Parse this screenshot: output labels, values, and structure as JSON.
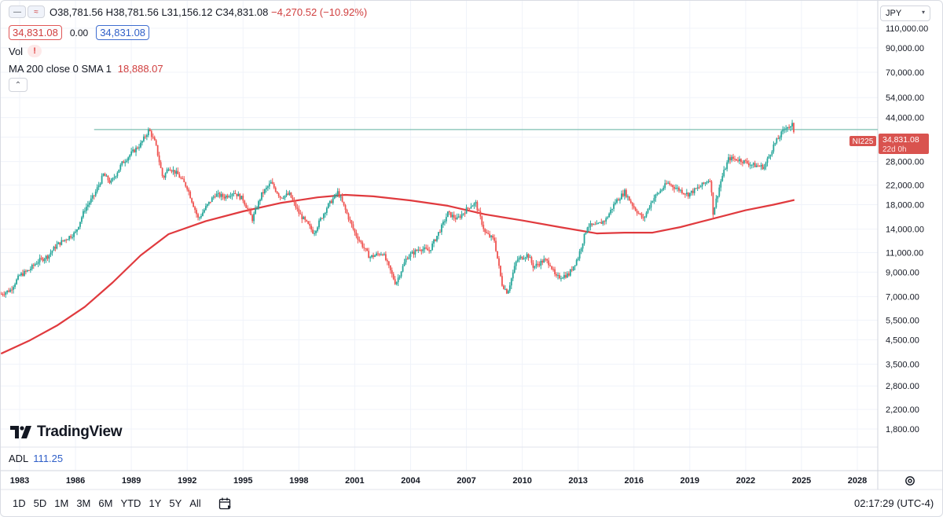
{
  "legend": {
    "ohlc_open": "O38,781.56",
    "ohlc_high": "H38,781.56",
    "ohlc_low": "L31,156.12",
    "ohlc_close": "C34,831.08",
    "ohlc_change": "−4,270.52 (−10.92%)",
    "bid": "34,831.08",
    "spread": "0.00",
    "ask": "34,831.08",
    "vol_label": "Vol",
    "vol_warning": "!",
    "ma_label": "MA 200 close 0 SMA 1",
    "ma_value": "18,888.07"
  },
  "currency": "JPY",
  "logo_text": "TradingView",
  "adl": {
    "label": "ADL",
    "value": "111.25"
  },
  "price_label": {
    "symbol": "NI225",
    "price": "34,831.08",
    "countdown": "22d 0h"
  },
  "ranges": [
    "1D",
    "5D",
    "1M",
    "3M",
    "6M",
    "YTD",
    "1Y",
    "5Y",
    "All"
  ],
  "clock": "02:17:29 (UTC-4)",
  "colors": {
    "up": "#26a69a",
    "down": "#ef5350",
    "ma": "#e03a3e",
    "hline": "#7fbfb2",
    "accent": "#2962ff"
  },
  "chart_data": {
    "type": "candlestick",
    "symbol": "NI225",
    "y_scale": "log",
    "ylim": [
      1500,
      125000
    ],
    "y_ticks": [
      1800,
      2200,
      2800,
      3500,
      4500,
      5500,
      7000,
      9000,
      11000,
      14000,
      18000,
      22000,
      28000,
      36000,
      44000,
      54000,
      70000,
      90000,
      110000
    ],
    "y_tick_labels": [
      "1,800.00",
      "2,200.00",
      "2,800.00",
      "3,500.00",
      "4,500.00",
      "5,500.00",
      "7,000.00",
      "9,000.00",
      "11,000.00",
      "14,000.00",
      "18,000.00",
      "22,000.00",
      "28,000.00",
      "36,000.00",
      "44,000.00",
      "54,000.00",
      "70,000.00",
      "90,000.00",
      "110,000.00"
    ],
    "x_tick_labels": [
      "1983",
      "1986",
      "1989",
      "1992",
      "1995",
      "1998",
      "2001",
      "2004",
      "2007",
      "2010",
      "2013",
      "2016",
      "2019",
      "2022",
      "2025",
      "2028"
    ],
    "x_range": [
      1982.0,
      2030.6
    ],
    "horizontal_line": 38900,
    "price_series": [
      [
        1982.0,
        7200
      ],
      [
        1982.5,
        7500
      ],
      [
        1983.0,
        8700
      ],
      [
        1983.5,
        9200
      ],
      [
        1984.0,
        10100
      ],
      [
        1984.5,
        10600
      ],
      [
        1985.0,
        11900
      ],
      [
        1985.5,
        12700
      ],
      [
        1986.0,
        13500
      ],
      [
        1986.5,
        17200
      ],
      [
        1987.0,
        19800
      ],
      [
        1987.5,
        24500
      ],
      [
        1987.9,
        22500
      ],
      [
        1988.5,
        27500
      ],
      [
        1989.0,
        30500
      ],
      [
        1989.5,
        33500
      ],
      [
        1989.95,
        38900
      ],
      [
        1990.3,
        33500
      ],
      [
        1990.7,
        23500
      ],
      [
        1991.0,
        26500
      ],
      [
        1991.5,
        24500
      ],
      [
        1992.0,
        21500
      ],
      [
        1992.6,
        15500
      ],
      [
        1993.0,
        17500
      ],
      [
        1993.5,
        20000
      ],
      [
        1994.0,
        19500
      ],
      [
        1994.5,
        20500
      ],
      [
        1995.0,
        19000
      ],
      [
        1995.5,
        15500
      ],
      [
        1996.0,
        20000
      ],
      [
        1996.5,
        22500
      ],
      [
        1997.0,
        19500
      ],
      [
        1997.5,
        20000
      ],
      [
        1998.0,
        16500
      ],
      [
        1998.8,
        13500
      ],
      [
        1999.5,
        17500
      ],
      [
        2000.1,
        20500
      ],
      [
        2000.5,
        17000
      ],
      [
        2001.0,
        13500
      ],
      [
        2001.8,
        10500
      ],
      [
        2002.5,
        11000
      ],
      [
        2003.2,
        8000
      ],
      [
        2003.8,
        10500
      ],
      [
        2004.5,
        11500
      ],
      [
        2005.0,
        11200
      ],
      [
        2005.7,
        14500
      ],
      [
        2006.0,
        16500
      ],
      [
        2006.5,
        15500
      ],
      [
        2007.2,
        17800
      ],
      [
        2007.5,
        18200
      ],
      [
        2008.0,
        13500
      ],
      [
        2008.5,
        12500
      ],
      [
        2008.9,
        8000
      ],
      [
        2009.2,
        7300
      ],
      [
        2009.7,
        10200
      ],
      [
        2010.3,
        10800
      ],
      [
        2010.6,
        9500
      ],
      [
        2011.2,
        10200
      ],
      [
        2011.5,
        9800
      ],
      [
        2011.8,
        8500
      ],
      [
        2012.5,
        8800
      ],
      [
        2013.0,
        10500
      ],
      [
        2013.5,
        14500
      ],
      [
        2014.0,
        14500
      ],
      [
        2014.5,
        15500
      ],
      [
        2015.0,
        18500
      ],
      [
        2015.5,
        20500
      ],
      [
        2016.0,
        17500
      ],
      [
        2016.5,
        15500
      ],
      [
        2017.0,
        19000
      ],
      [
        2017.8,
        22500
      ],
      [
        2018.2,
        21500
      ],
      [
        2018.9,
        20000
      ],
      [
        2019.5,
        21500
      ],
      [
        2020.1,
        23500
      ],
      [
        2020.25,
        16600
      ],
      [
        2020.7,
        23500
      ],
      [
        2021.1,
        29000
      ],
      [
        2021.7,
        28500
      ],
      [
        2022.4,
        27000
      ],
      [
        2023.0,
        26500
      ],
      [
        2023.5,
        33000
      ],
      [
        2024.2,
        40500
      ],
      [
        2024.45,
        39500
      ],
      [
        2024.55,
        42000
      ],
      [
        2024.62,
        34831
      ]
    ],
    "ma_series": [
      [
        1982.0,
        3900
      ],
      [
        1983.5,
        4450
      ],
      [
        1985.0,
        5200
      ],
      [
        1986.5,
        6300
      ],
      [
        1988.0,
        8100
      ],
      [
        1989.5,
        10700
      ],
      [
        1991.0,
        13300
      ],
      [
        1993.0,
        15200
      ],
      [
        1995.0,
        16800
      ],
      [
        1997.0,
        18300
      ],
      [
        1999.0,
        19400
      ],
      [
        2000.5,
        19900
      ],
      [
        2002.0,
        19600
      ],
      [
        2004.0,
        18800
      ],
      [
        2006.0,
        17800
      ],
      [
        2008.0,
        16300
      ],
      [
        2010.0,
        15300
      ],
      [
        2012.0,
        14300
      ],
      [
        2014.0,
        13400
      ],
      [
        2015.5,
        13500
      ],
      [
        2017.0,
        13500
      ],
      [
        2018.5,
        14300
      ],
      [
        2020.0,
        15400
      ],
      [
        2022.0,
        17000
      ],
      [
        2023.5,
        18000
      ],
      [
        2024.62,
        18888
      ]
    ]
  }
}
